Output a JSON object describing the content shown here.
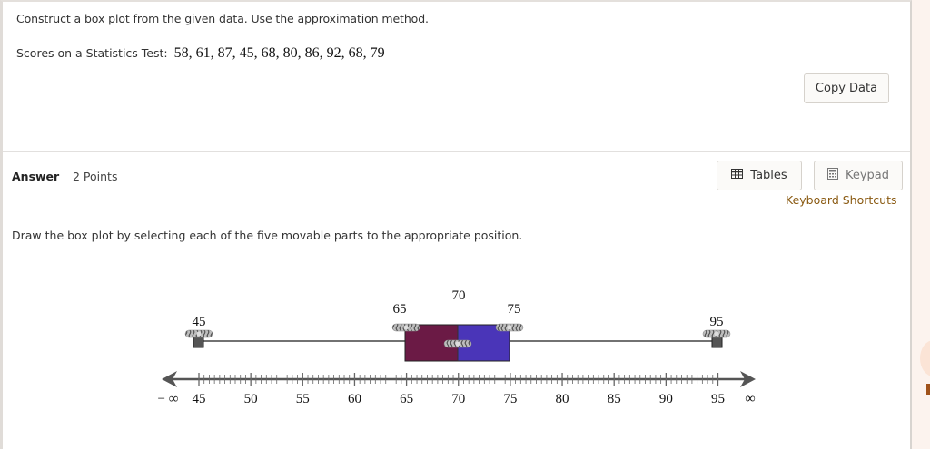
{
  "question": {
    "prompt": "Construct a box plot from the given data. Use the approximation method.",
    "data_label": "Scores on a Statistics Test:",
    "data_values": "58, 61, 87, 45, 68, 80, 86, 92, 68, 79",
    "copy_button": "Copy Data"
  },
  "answer": {
    "label": "Answer",
    "points": "2 Points",
    "tables_button": "Tables",
    "keypad_button": "Keypad",
    "keyboard_shortcuts": "Keyboard Shortcuts",
    "instruction": "Draw the box plot by selecting each of the five movable parts to the appropriate position."
  },
  "box_plot": {
    "min": "45",
    "q1": "65",
    "median": "70",
    "q3": "75",
    "max": "95",
    "colors": {
      "left_box": "#6b1a45",
      "right_box": "#4a35b8",
      "whisker": "#444444",
      "axis": "#555555"
    }
  },
  "axis": {
    "neg_inf": "− ∞",
    "pos_inf": "∞",
    "ticks": [
      "45",
      "50",
      "55",
      "60",
      "65",
      "70",
      "75",
      "80",
      "85",
      "90",
      "95"
    ],
    "minor_step": 0.5
  },
  "icons": {
    "tables": "table-grid-icon",
    "keypad": "calculator-icon"
  }
}
